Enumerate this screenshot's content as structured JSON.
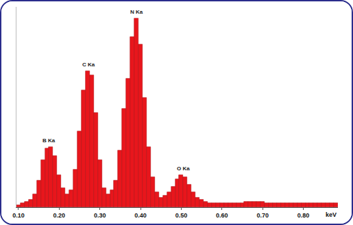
{
  "chart_data": {
    "type": "bar",
    "x_label": "keV",
    "x": [
      0.1,
      0.11,
      0.12,
      0.13,
      0.14,
      0.15,
      0.16,
      0.17,
      0.18,
      0.19,
      0.2,
      0.21,
      0.22,
      0.23,
      0.24,
      0.25,
      0.26,
      0.27,
      0.28,
      0.29,
      0.3,
      0.31,
      0.32,
      0.33,
      0.34,
      0.35,
      0.36,
      0.37,
      0.38,
      0.39,
      0.4,
      0.41,
      0.42,
      0.43,
      0.44,
      0.45,
      0.46,
      0.47,
      0.48,
      0.49,
      0.5,
      0.51,
      0.52,
      0.53,
      0.54,
      0.55,
      0.56,
      0.57,
      0.58,
      0.59,
      0.6,
      0.61,
      0.62,
      0.63,
      0.64,
      0.65,
      0.66,
      0.67,
      0.68,
      0.69,
      0.7,
      0.71,
      0.72,
      0.73,
      0.74,
      0.75,
      0.76,
      0.77,
      0.78,
      0.79,
      0.8,
      0.81,
      0.82,
      0.83,
      0.84,
      0.85,
      0.86,
      0.87,
      0.88
    ],
    "values": [
      1,
      2,
      3,
      4,
      7,
      14,
      25,
      31,
      32,
      27,
      17,
      10,
      7,
      9,
      20,
      40,
      62,
      72,
      70,
      50,
      25,
      10,
      7,
      9,
      14,
      30,
      52,
      68,
      90,
      100,
      86,
      58,
      32,
      16,
      8,
      5,
      6,
      8,
      11,
      15,
      17,
      16,
      12,
      8,
      5,
      4,
      3,
      2,
      2,
      2,
      2,
      2,
      2,
      2,
      2,
      2,
      3,
      3,
      3,
      3,
      3,
      2,
      2,
      2,
      2,
      2,
      2,
      2,
      2,
      2,
      2,
      2,
      2,
      2,
      2,
      2,
      2,
      2,
      2
    ],
    "color": "#e8161c",
    "xlim": [
      0.095,
      0.885
    ],
    "xticks": [
      {
        "value": 0.1,
        "label": "0.10"
      },
      {
        "value": 0.2,
        "label": "0.20"
      },
      {
        "value": 0.3,
        "label": "0.30"
      },
      {
        "value": 0.4,
        "label": "0.40"
      },
      {
        "value": 0.5,
        "label": "0.50"
      },
      {
        "value": 0.6,
        "label": "0.60"
      },
      {
        "value": 0.7,
        "label": "0.70"
      },
      {
        "value": 0.8,
        "label": "0.80"
      }
    ],
    "ylim": [
      0,
      106
    ],
    "tick_labels": "x",
    "grid": false,
    "annotations": [
      {
        "text": "B Ka",
        "x": 0.175,
        "y": 32
      },
      {
        "text": "C Ka",
        "x": 0.272,
        "y": 72
      },
      {
        "text": "N Ka",
        "x": 0.39,
        "y": 100
      },
      {
        "text": "O Ka",
        "x": 0.505,
        "y": 17
      }
    ]
  }
}
